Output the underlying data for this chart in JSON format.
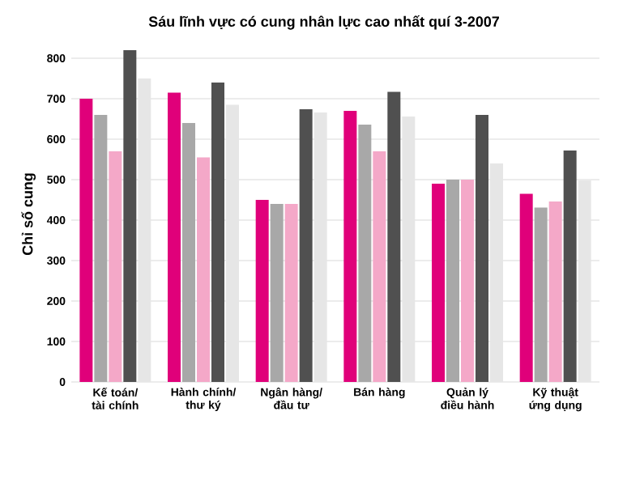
{
  "chart_data": {
    "type": "bar",
    "title": "Sáu lĩnh vực có cung nhân lực cao nhất quí 3-2007",
    "ylabel": "Chỉ số cung",
    "categories": [
      "Kế toán/ tài chính",
      "Hành chính/ thư ký",
      "Ngân hàng/ đầu tư",
      "Bán hàng",
      "Quản lý điều hành",
      "Kỹ thuật ứng dụng"
    ],
    "series": [
      {
        "color": "#e0007a",
        "values": [
          700,
          715,
          450,
          670,
          490,
          465
        ]
      },
      {
        "color": "#a8a8a8",
        "values": [
          660,
          640,
          440,
          636,
          500,
          431
        ]
      },
      {
        "color": "#f4a8c8",
        "values": [
          570,
          555,
          440,
          570,
          500,
          446
        ]
      },
      {
        "color": "#505050",
        "values": [
          820,
          740,
          674,
          717,
          660,
          572
        ]
      },
      {
        "color": "#e6e6e6",
        "values": [
          750,
          685,
          666,
          656,
          540,
          498
        ]
      }
    ],
    "ylim": [
      0,
      830
    ],
    "yticks": [
      0,
      100,
      200,
      300,
      400,
      500,
      600,
      700,
      800
    ],
    "grid": "y"
  }
}
